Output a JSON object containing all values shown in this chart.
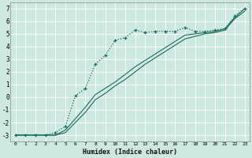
{
  "xlabel": "Humidex (Indice chaleur)",
  "bg_color": "#cce8e0",
  "grid_color": "#b8d8d0",
  "line_color": "#1a6b5a",
  "xlim": [
    -0.5,
    23.5
  ],
  "ylim": [
    -3.5,
    7.5
  ],
  "xticks": [
    0,
    1,
    2,
    3,
    4,
    5,
    6,
    7,
    8,
    9,
    10,
    11,
    12,
    13,
    14,
    15,
    16,
    17,
    18,
    19,
    20,
    21,
    22,
    23
  ],
  "yticks": [
    -3,
    -2,
    -1,
    0,
    1,
    2,
    3,
    4,
    5,
    6,
    7
  ],
  "curve1_x": [
    0,
    1,
    2,
    3,
    4,
    5,
    6,
    7,
    8,
    9,
    10,
    11,
    12,
    13,
    14,
    15,
    16,
    17,
    18,
    19,
    20,
    21,
    22,
    23
  ],
  "curve1_y": [
    -3.0,
    -3.0,
    -3.0,
    -3.0,
    -2.8,
    -2.3,
    0.1,
    0.7,
    2.6,
    3.3,
    4.5,
    4.7,
    5.3,
    5.1,
    5.2,
    5.2,
    5.2,
    5.5,
    5.2,
    5.2,
    5.3,
    5.4,
    6.4,
    7.0
  ],
  "curve2_x": [
    0,
    1,
    2,
    3,
    4,
    5,
    6,
    7,
    8,
    9,
    10,
    11,
    12,
    13,
    14,
    15,
    16,
    17,
    18,
    19,
    20,
    21,
    22,
    23
  ],
  "curve2_y": [
    -3.0,
    -3.0,
    -3.0,
    -3.0,
    -3.0,
    -2.6,
    -1.7,
    -0.8,
    0.2,
    0.7,
    1.2,
    1.8,
    2.4,
    2.9,
    3.4,
    3.9,
    4.4,
    4.9,
    5.0,
    5.1,
    5.2,
    5.4,
    6.3,
    7.0
  ],
  "curve3_x": [
    0,
    1,
    2,
    3,
    4,
    5,
    6,
    7,
    8,
    9,
    10,
    11,
    12,
    13,
    14,
    15,
    16,
    17,
    18,
    19,
    20,
    21,
    22,
    23
  ],
  "curve3_y": [
    -3.0,
    -3.0,
    -3.0,
    -3.0,
    -3.0,
    -2.8,
    -2.0,
    -1.2,
    -0.2,
    0.3,
    0.9,
    1.4,
    2.0,
    2.6,
    3.1,
    3.6,
    4.1,
    4.6,
    4.8,
    5.0,
    5.1,
    5.3,
    6.2,
    6.8
  ]
}
